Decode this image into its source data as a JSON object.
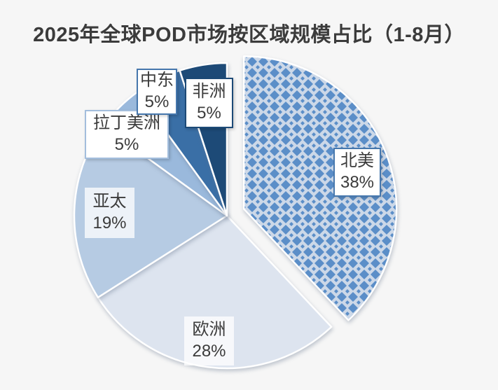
{
  "page": {
    "background_color": "#f6f6f6"
  },
  "header": {
    "title": "2025年全球POD市场按区域规模占比（1-8月）"
  },
  "chart_data": {
    "type": "pie",
    "title": "2025年全球POD市场按区域规模占比（1-8月）",
    "unit": "%",
    "direction": "clockwise",
    "start_angle_deg": 0,
    "legend": "none",
    "label_style": "callout-boxes-with-category-and-percent",
    "categories": [
      "北美",
      "欧洲",
      "亚太",
      "拉丁美洲",
      "中东",
      "非洲"
    ],
    "values": [
      38,
      28,
      19,
      5,
      5,
      5
    ],
    "slices": [
      {
        "id": "north-america",
        "label": "北美",
        "value": 38,
        "pct_text": "38%",
        "fill": "pattern:diamond",
        "pattern_fg": "#5b8ec8",
        "pattern_bg": "#ccd8e8",
        "exploded": true,
        "callout_border": "#4677ad"
      },
      {
        "id": "europe",
        "label": "欧洲",
        "value": 28,
        "pct_text": "28%",
        "fill": "#dde4ef"
      },
      {
        "id": "asia-pacific",
        "label": "亚太",
        "value": 19,
        "pct_text": "19%",
        "fill": "#b6cbe3"
      },
      {
        "id": "latin-america",
        "label": "拉丁美洲",
        "value": 5,
        "pct_text": "5%",
        "fill": "#9ab9dc",
        "callout_border": "#a3bedd"
      },
      {
        "id": "middle-east",
        "label": "中东",
        "value": 5,
        "pct_text": "5%",
        "fill": "#3a6fa6",
        "callout_border": "#4677ad"
      },
      {
        "id": "africa",
        "label": "非洲",
        "value": 5,
        "pct_text": "5%",
        "fill": "#1d4a77",
        "callout_border": "#1d4a77"
      }
    ],
    "stroke_color": "#ffffff"
  }
}
